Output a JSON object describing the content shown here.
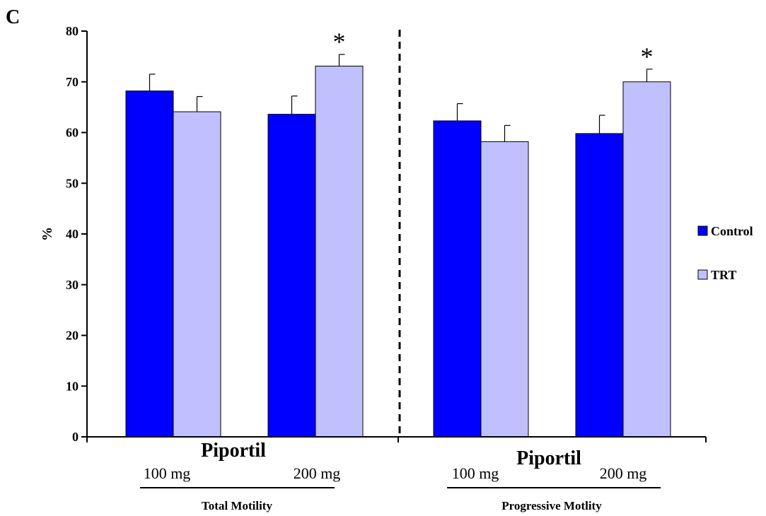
{
  "panel_label": "C",
  "chart_data": {
    "type": "bar",
    "ylabel": "%",
    "ylim": [
      0,
      80
    ],
    "yticks": [
      0,
      10,
      20,
      30,
      40,
      50,
      60,
      70,
      80
    ],
    "series": [
      {
        "name": "Control",
        "color": "#0000ff",
        "values": [
          68.2,
          63.6,
          62.3,
          59.8
        ],
        "errors": [
          3.3,
          3.6,
          3.4,
          3.6
        ]
      },
      {
        "name": "TRT",
        "color": "#c0c0ff",
        "values": [
          64.1,
          73.1,
          58.2,
          70.0
        ],
        "errors": [
          3.0,
          2.3,
          3.2,
          2.5
        ]
      }
    ],
    "significance_marker": "*",
    "significant": [
      {
        "series": "TRT",
        "index": 1
      },
      {
        "series": "TRT",
        "index": 3
      }
    ],
    "groups": [
      {
        "drug_label": "Piportil",
        "dose_labels": [
          "100 mg",
          "200 mg"
        ],
        "group_label": "Total Motility"
      },
      {
        "drug_label": "Piportil",
        "dose_labels": [
          "100 mg",
          "200 mg"
        ],
        "group_label": "Progressive Motlity"
      }
    ],
    "legend_position": "right",
    "grid": false,
    "group_divider": "dashed"
  }
}
